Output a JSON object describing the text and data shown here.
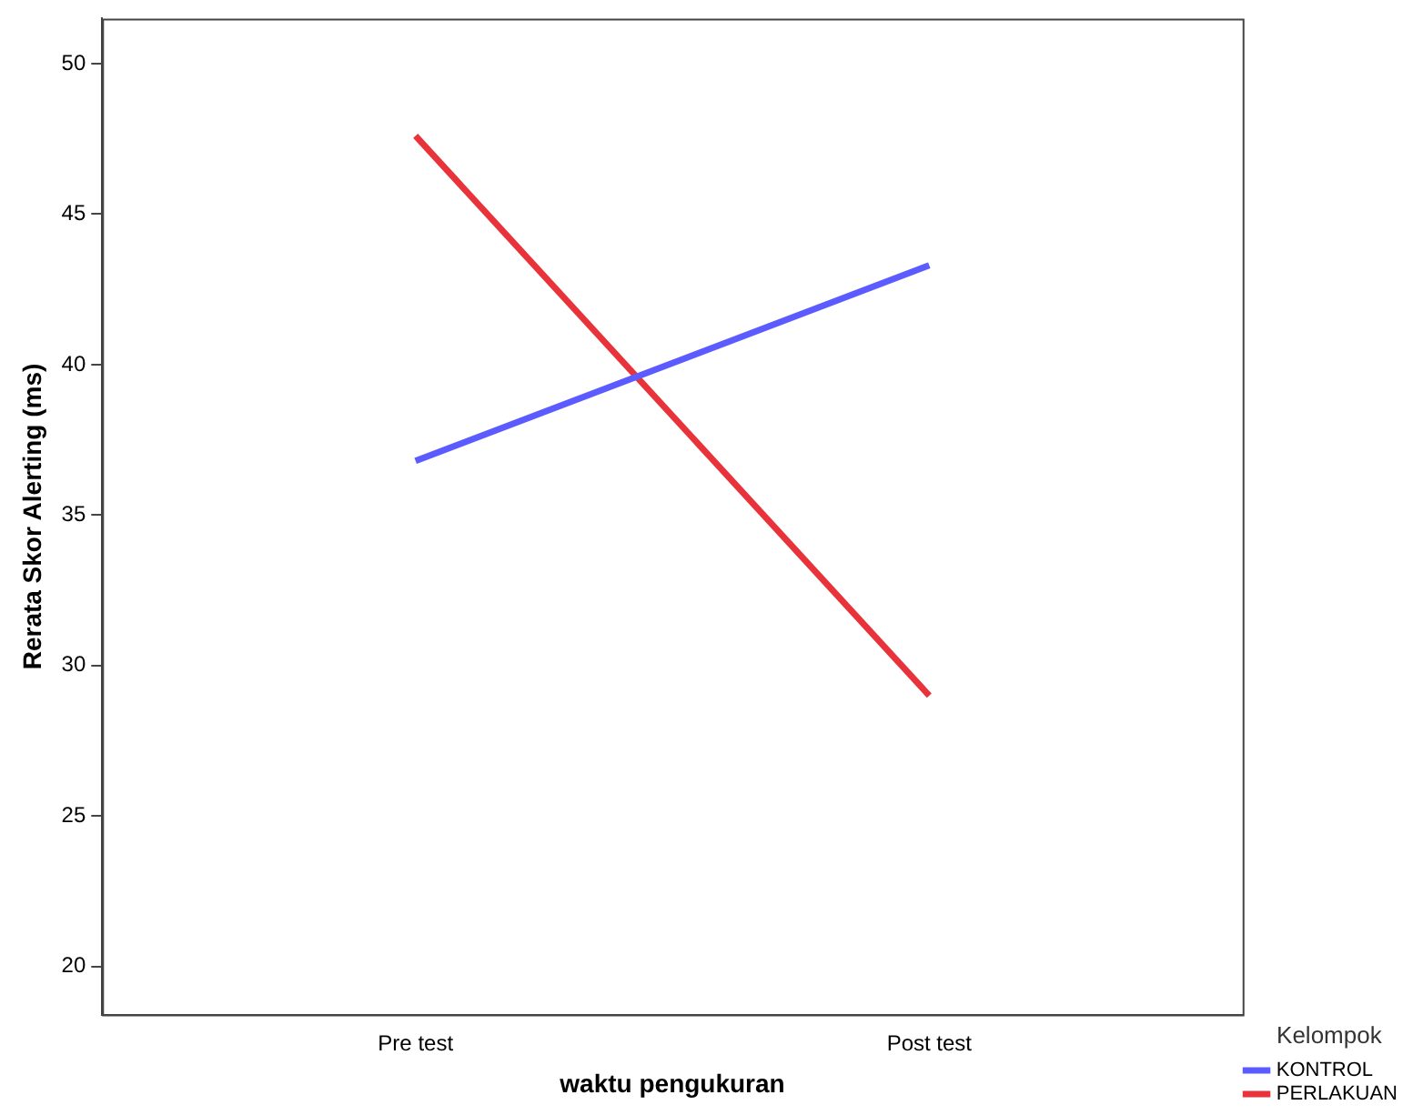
{
  "chart_data": {
    "type": "line",
    "xlabel": "waktu pengukuran",
    "ylabel": "Rerata Skor Alerting (ms)",
    "legend_title": "Kelompok",
    "categories": [
      "Pre test",
      "Post test"
    ],
    "series": [
      {
        "name": "KONTROL",
        "color": "#5b5bff",
        "values": [
          36.8,
          43.3
        ]
      },
      {
        "name": "PERLAKUAN",
        "color": "#e8333b",
        "values": [
          47.6,
          29.0
        ]
      }
    ],
    "ylim": [
      18.4,
      51.5
    ],
    "yticks": [
      20,
      25,
      30,
      35,
      40,
      45,
      50
    ],
    "grid": false,
    "legend": "bottom right",
    "marker": "none",
    "line_style": "solid"
  }
}
